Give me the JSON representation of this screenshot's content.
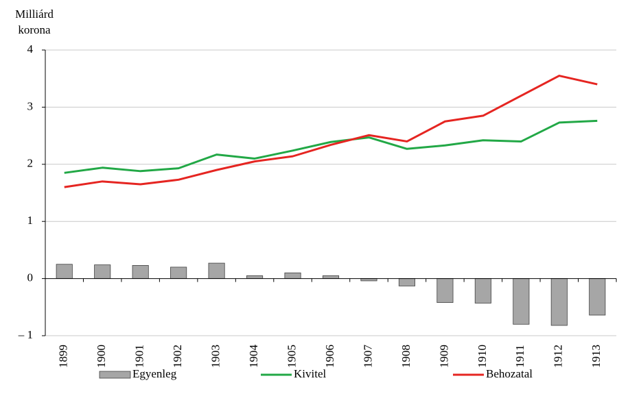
{
  "chart_data": {
    "type": "bar-line",
    "ylabel": [
      "Milliárd",
      "korona"
    ],
    "categories": [
      "1899",
      "1900",
      "1901",
      "1902",
      "1903",
      "1904",
      "1905",
      "1906",
      "1907",
      "1908",
      "1909",
      "1910",
      "1911",
      "1912",
      "1913"
    ],
    "series": [
      {
        "name": "Egyenleg",
        "type": "bar",
        "color": "#a6a6a6",
        "values": [
          0.25,
          0.24,
          0.23,
          0.2,
          0.27,
          0.05,
          0.1,
          0.05,
          -0.04,
          -0.13,
          -0.42,
          -0.43,
          -0.8,
          -0.82,
          -0.64
        ]
      },
      {
        "name": "Kivitel",
        "type": "line",
        "color": "#22a846",
        "values": [
          1.85,
          1.94,
          1.88,
          1.93,
          2.17,
          2.1,
          2.24,
          2.39,
          2.47,
          2.27,
          2.33,
          2.42,
          2.4,
          2.73,
          2.76
        ]
      },
      {
        "name": "Behozatal",
        "type": "line",
        "color": "#e52521",
        "values": [
          1.6,
          1.7,
          1.65,
          1.73,
          1.9,
          2.05,
          2.14,
          2.34,
          2.51,
          2.4,
          2.75,
          2.85,
          3.2,
          3.55,
          3.4
        ]
      }
    ],
    "ylim": [
      -1,
      4
    ],
    "yticks": [
      {
        "value": -1,
        "label": "– 1"
      },
      0,
      1,
      2,
      3,
      4
    ],
    "grid": true,
    "legend": "bottom"
  }
}
